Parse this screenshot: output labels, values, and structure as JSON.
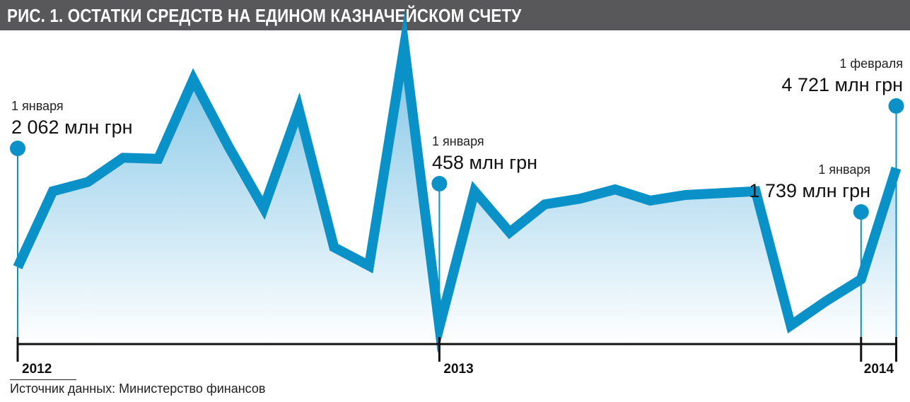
{
  "title": "РИС. 1. ОСТАТКИ СРЕДСТВ НА ЕДИНОМ КАЗНАЧЕЙСКОМ СЧЕТУ",
  "source": "Источник данных: Министерство финансов",
  "colors": {
    "line": "#0a92c8",
    "area_top": "#7fc4e6",
    "area_bottom": "#ffffff",
    "title_bg": "#58585a",
    "axis": "#111111"
  },
  "chart_data": {
    "type": "area",
    "unit": "млн грн",
    "x": [
      0,
      1,
      2,
      3,
      4,
      5,
      6,
      7,
      8,
      9,
      10,
      11,
      12,
      13,
      14,
      15,
      16,
      17,
      18,
      19,
      20,
      21,
      22,
      23,
      24,
      25
    ],
    "values": [
      2062,
      4100,
      4350,
      5000,
      4970,
      7100,
      5300,
      3650,
      6300,
      2600,
      2100,
      8000,
      458,
      4100,
      3000,
      3750,
      3900,
      4150,
      3850,
      4000,
      4050,
      4100,
      500,
      1150,
      1739,
      4721
    ],
    "year_ticks": [
      {
        "label": "2012",
        "x": 0
      },
      {
        "label": "2013",
        "x": 12
      },
      {
        "label": "2014",
        "x": 24
      },
      {
        "label": "",
        "x": 25
      }
    ],
    "annotations": [
      {
        "x": 0,
        "date": "1 января",
        "value_label": "2 062 млн грн",
        "align": "left"
      },
      {
        "x": 12,
        "date": "1 января",
        "value_label": "458 млн грн",
        "align": "left"
      },
      {
        "x": 24,
        "date": "1 января",
        "value_label": "1 739 млн грн",
        "align": "right"
      },
      {
        "x": 25,
        "date": "1 февраля",
        "value_label": "4 721 млн грн",
        "align": "right"
      }
    ]
  }
}
